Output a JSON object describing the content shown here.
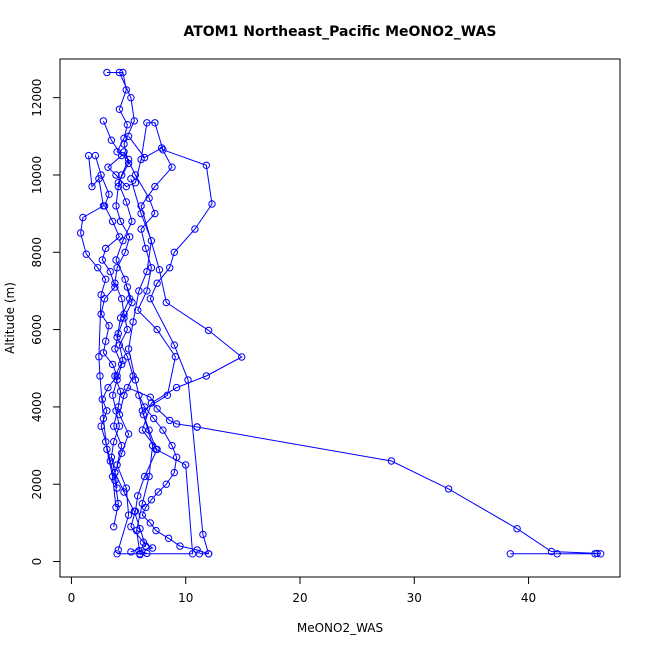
{
  "chart_data": {
    "type": "scatter",
    "title": "ATOM1 Northeast_Pacific MeONO2_WAS",
    "xlabel": "MeONO2_WAS",
    "ylabel": "Altitude (m)",
    "xlim": [
      -1,
      48
    ],
    "ylim": [
      -400,
      13000
    ],
    "xticks": [
      0,
      10,
      20,
      30,
      40
    ],
    "yticks": [
      0,
      2000,
      4000,
      6000,
      8000,
      10000,
      12000
    ],
    "grid": false,
    "connected": true,
    "color": "#0000ff",
    "series": [
      {
        "x": [
          3.1,
          4.5,
          4.8,
          4.2,
          4.9,
          4.6,
          4.0,
          5.0,
          4.4,
          4.1,
          3.9,
          4.3,
          5.1,
          4.7,
          4.0,
          3.8,
          4.4,
          4.6,
          4.9,
          4.2,
          4.5,
          3.8,
          4.3,
          4.1,
          3.7,
          4.4,
          4.0,
          4.8,
          5.0,
          4.1
        ],
        "y": [
          12650,
          12650,
          12200,
          11700,
          11300,
          10950,
          10600,
          10400,
          10000,
          9700,
          9200,
          8800,
          8400,
          8000,
          7600,
          7200,
          6800,
          6400,
          6000,
          5600,
          5200,
          4800,
          4400,
          4000,
          3500,
          3000,
          2500,
          1900,
          1200,
          300
        ]
      },
      {
        "x": [
          4.2,
          5.2,
          5.5,
          4.6,
          5.0,
          4.1,
          4.8,
          5.3,
          4.5,
          3.9,
          4.7,
          5.1,
          4.3,
          4.0,
          4.9,
          5.4,
          4.6,
          4.2,
          5.0,
          4.4,
          3.8,
          4.6,
          5.5,
          6.0,
          6.5,
          5.2
        ],
        "y": [
          12650,
          12000,
          11400,
          10800,
          10300,
          9800,
          9300,
          8800,
          8300,
          7800,
          7300,
          6800,
          6300,
          5800,
          5300,
          4800,
          4300,
          3800,
          3300,
          2800,
          2300,
          1800,
          1300,
          850,
          400,
          250
        ]
      },
      {
        "x": [
          2.8,
          3.5,
          4.4,
          3.2,
          3.9,
          4.8,
          5.6,
          6.1,
          6.6,
          7.3,
          8.0,
          11.8,
          12.3,
          10.8,
          9.0,
          8.6,
          7.5,
          6.9,
          9.0,
          10.2,
          11.5,
          12.0
        ],
        "y": [
          11400,
          10900,
          10500,
          10200,
          10000,
          9700,
          9800,
          10400,
          11350,
          11350,
          10650,
          10250,
          9250,
          8600,
          8000,
          7600,
          7200,
          6800,
          5600,
          4700,
          700,
          200
        ]
      },
      {
        "x": [
          2.1,
          2.6,
          3.3,
          2.9,
          3.6,
          4.2,
          3.0,
          2.7,
          3.4,
          3.8,
          2.9,
          2.6,
          3.3,
          3.0,
          2.8,
          3.6,
          4.0,
          3.2,
          2.7,
          3.1,
          2.6,
          3.0,
          3.4,
          3.8,
          4.1,
          3.7
        ],
        "y": [
          10500,
          10000,
          9500,
          9200,
          8800,
          8400,
          8100,
          7800,
          7500,
          7100,
          6800,
          6400,
          6100,
          5700,
          5400,
          5100,
          4800,
          4500,
          4200,
          3900,
          3500,
          3100,
          2600,
          2100,
          1500,
          900
        ]
      },
      {
        "x": [
          1.5,
          1.8,
          2.4,
          2.8,
          1.0,
          0.8,
          1.3,
          2.3,
          3.0,
          2.6,
          2.4,
          2.5,
          2.8,
          3.1,
          3.6,
          3.9
        ],
        "y": [
          10500,
          9700,
          9900,
          9200,
          8900,
          8500,
          7950,
          7600,
          7300,
          6900,
          5300,
          4800,
          3700,
          2900,
          2200,
          1400
        ]
      },
      {
        "x": [
          4.6,
          5.6,
          6.8,
          7.3,
          6.1,
          6.5,
          7.0,
          6.6,
          5.8,
          7.5,
          9.1,
          8.4,
          6.2,
          6.8,
          7.4,
          10.0,
          10.6,
          4.0
        ],
        "y": [
          10600,
          10000,
          9400,
          9000,
          8600,
          8100,
          7600,
          7000,
          6500,
          6000,
          5300,
          4300,
          3900,
          3400,
          2900,
          2500,
          200,
          200
        ]
      },
      {
        "x": [
          5.0,
          6.4,
          7.9,
          8.8,
          7.3,
          6.1,
          7.7,
          8.3,
          12.0,
          14.9,
          11.8,
          9.2,
          7.0,
          6.2,
          7.5,
          6.4,
          5.8,
          5.6,
          5.2,
          6.3,
          7.1,
          5.9,
          6.6,
          6.0
        ],
        "y": [
          11000,
          10450,
          10700,
          10200,
          9700,
          9200,
          7550,
          6700,
          5980,
          5290,
          4800,
          4500,
          4100,
          3400,
          2900,
          2200,
          1700,
          1300,
          900,
          500,
          350,
          280,
          210,
          180
        ]
      },
      {
        "x": [
          5.2,
          6.1,
          7.0,
          6.6,
          5.9,
          5.4,
          5.0,
          5.6,
          6.3,
          7.1,
          6.8,
          6.2,
          5.7,
          6.0
        ],
        "y": [
          9900,
          9000,
          8300,
          7500,
          7000,
          6200,
          5500,
          4700,
          3800,
          3000,
          2200,
          1500,
          800,
          200
        ]
      },
      {
        "x": [
          4.9,
          6.9,
          7.5,
          8.6,
          9.2,
          11.0,
          11.0,
          28.0,
          33.0,
          39.0,
          42.0,
          46.0,
          46.3,
          45.8,
          42.5,
          38.4
        ],
        "y": [
          4500,
          4250,
          3950,
          3650,
          3560,
          3480,
          3480,
          2600,
          1880,
          850,
          260,
          210,
          200,
          200,
          200,
          200
        ]
      },
      {
        "x": [
          5.9,
          6.4,
          7.2,
          8.0,
          8.8,
          9.2,
          9.0,
          8.3,
          7.6,
          7.0,
          6.5,
          6.2,
          6.9,
          7.4,
          8.5,
          9.5,
          11.0,
          12.0,
          11.2
        ],
        "y": [
          4300,
          4000,
          3700,
          3400,
          3000,
          2700,
          2300,
          2000,
          1800,
          1600,
          1400,
          1200,
          1000,
          800,
          600,
          400,
          300,
          200,
          200
        ]
      },
      {
        "x": [
          4.9,
          5.3,
          4.6,
          4.1,
          3.8,
          4.4,
          4.0,
          3.6,
          3.9,
          4.2,
          3.7,
          3.5,
          3.8,
          4.0
        ],
        "y": [
          7100,
          6700,
          6300,
          5900,
          5500,
          5100,
          4700,
          4300,
          3900,
          3500,
          3100,
          2700,
          2300,
          1900
        ]
      }
    ]
  }
}
